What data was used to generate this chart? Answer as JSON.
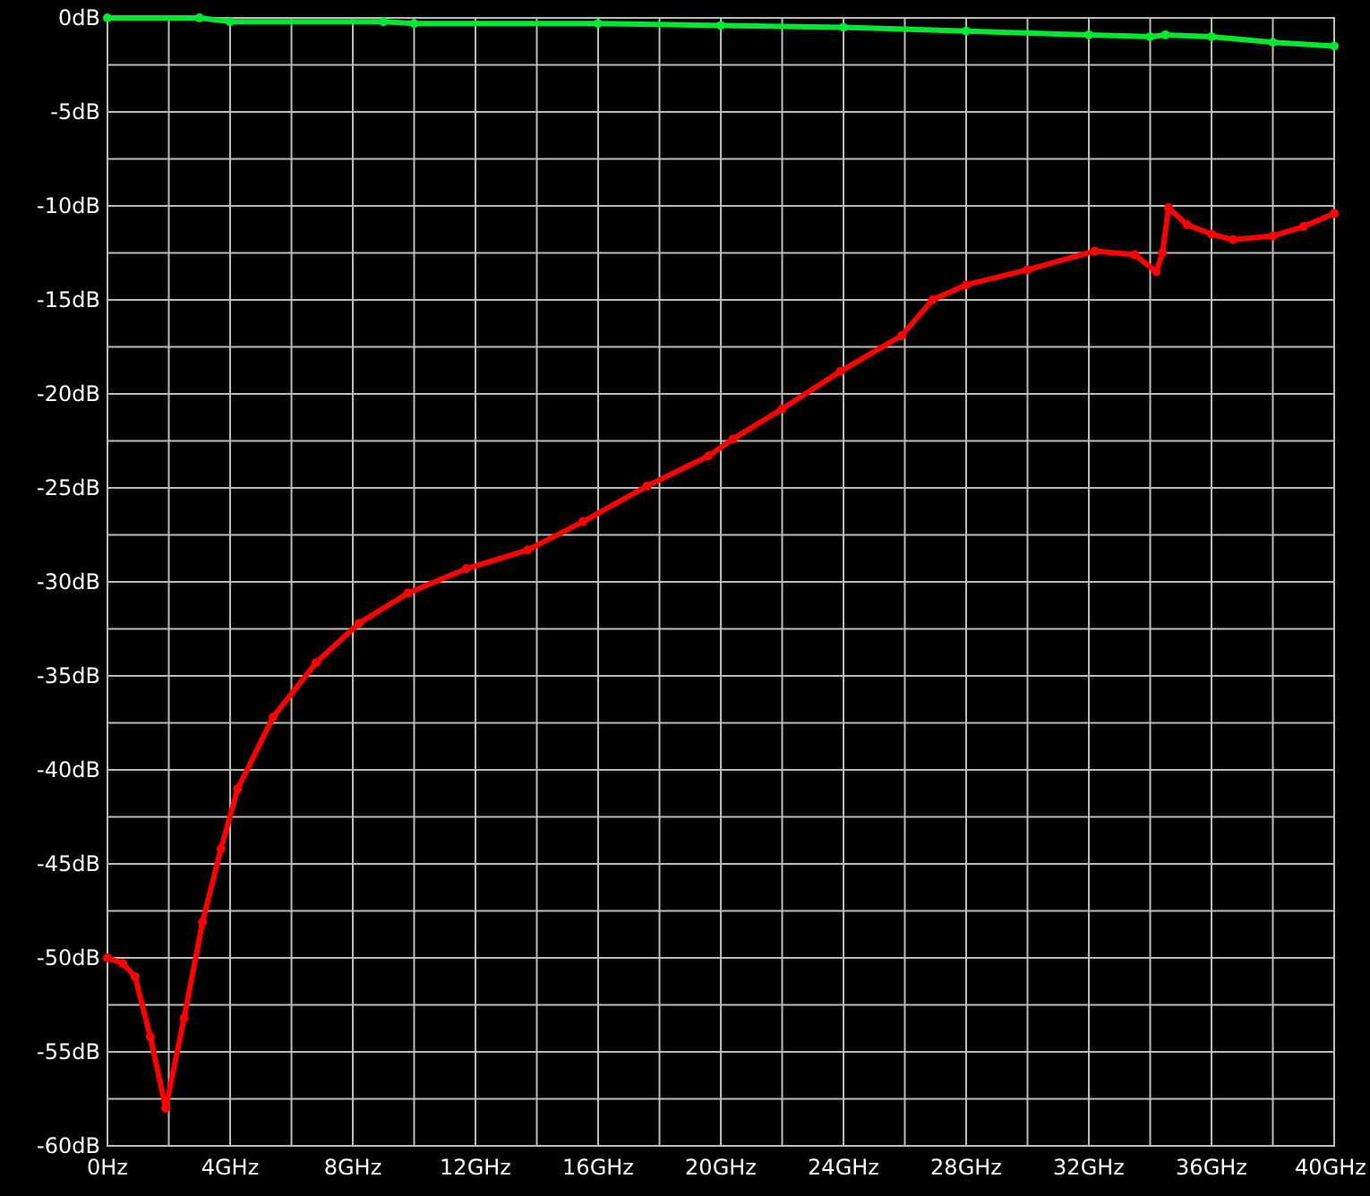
{
  "chart_data": {
    "type": "line",
    "marker": "circle",
    "grid": true,
    "xlim": [
      0,
      40
    ],
    "ylim": [
      -60,
      0
    ],
    "xticks": [
      {
        "value": 0,
        "label": "0Hz"
      },
      {
        "value": 2,
        "label": null
      },
      {
        "value": 4,
        "label": "4GHz"
      },
      {
        "value": 6,
        "label": null
      },
      {
        "value": 8,
        "label": "8GHz"
      },
      {
        "value": 10,
        "label": null
      },
      {
        "value": 12,
        "label": "12GHz"
      },
      {
        "value": 14,
        "label": null
      },
      {
        "value": 16,
        "label": "16GHz"
      },
      {
        "value": 18,
        "label": null
      },
      {
        "value": 20,
        "label": "20GHz"
      },
      {
        "value": 22,
        "label": null
      },
      {
        "value": 24,
        "label": "24GHz"
      },
      {
        "value": 26,
        "label": null
      },
      {
        "value": 28,
        "label": "28GHz"
      },
      {
        "value": 30,
        "label": null
      },
      {
        "value": 32,
        "label": "32GHz"
      },
      {
        "value": 34,
        "label": null
      },
      {
        "value": 36,
        "label": "36GHz"
      },
      {
        "value": 38,
        "label": null
      },
      {
        "value": 40,
        "label": "40GHz"
      }
    ],
    "yticks": [
      {
        "value": 0,
        "label": "0dB"
      },
      {
        "value": -2.5,
        "label": null
      },
      {
        "value": -5,
        "label": "-5dB"
      },
      {
        "value": -7.5,
        "label": null
      },
      {
        "value": -10,
        "label": "-10dB"
      },
      {
        "value": -12.5,
        "label": null
      },
      {
        "value": -15,
        "label": "-15dB"
      },
      {
        "value": -17.5,
        "label": null
      },
      {
        "value": -20,
        "label": "-20dB"
      },
      {
        "value": -22.5,
        "label": null
      },
      {
        "value": -25,
        "label": "-25dB"
      },
      {
        "value": -27.5,
        "label": null
      },
      {
        "value": -30,
        "label": "-30dB"
      },
      {
        "value": -32.5,
        "label": null
      },
      {
        "value": -35,
        "label": "-35dB"
      },
      {
        "value": -37.5,
        "label": null
      },
      {
        "value": -40,
        "label": "-40dB"
      },
      {
        "value": -42.5,
        "label": null
      },
      {
        "value": -45,
        "label": "-45dB"
      },
      {
        "value": -47.5,
        "label": null
      },
      {
        "value": -50,
        "label": "-50dB"
      },
      {
        "value": -52.5,
        "label": null
      },
      {
        "value": -55,
        "label": "-55dB"
      },
      {
        "value": -57.5,
        "label": null
      },
      {
        "value": -60,
        "label": "-60dB"
      }
    ],
    "series": [
      {
        "color": "#00e832",
        "x": [
          0,
          3,
          4,
          9,
          10,
          16,
          20,
          24,
          28,
          32,
          34,
          34.5,
          36,
          38,
          40
        ],
        "values": [
          0,
          0,
          -0.2,
          -0.2,
          -0.3,
          -0.3,
          -0.4,
          -0.5,
          -0.7,
          -0.9,
          -1.0,
          -0.9,
          -1.0,
          -1.3,
          -1.5
        ]
      },
      {
        "color": "#ff0000",
        "x": [
          0,
          0.5,
          0.9,
          1.4,
          1.9,
          2.5,
          3.1,
          3.7,
          4.25,
          5.4,
          6.8,
          8.2,
          9.8,
          11.7,
          13.7,
          15.5,
          17.6,
          19.6,
          20.4,
          22,
          23.9,
          25.9,
          26.9,
          28,
          30,
          32.2,
          33.5,
          34.2,
          34.4,
          34.6,
          35.2,
          36,
          36.7,
          38,
          39,
          40
        ],
        "values": [
          -50,
          -50.3,
          -51,
          -54.2,
          -58,
          -53.2,
          -48.1,
          -44.2,
          -41,
          -37.2,
          -34.3,
          -32.2,
          -30.6,
          -29.3,
          -28.3,
          -26.8,
          -24.9,
          -23.3,
          -22.4,
          -20.8,
          -18.8,
          -16.9,
          -15,
          -14.2,
          -13.4,
          -12.4,
          -12.6,
          -13.5,
          -12.5,
          -10.1,
          -11,
          -11.5,
          -11.8,
          -11.6,
          -11.1,
          -10.4
        ]
      }
    ]
  }
}
